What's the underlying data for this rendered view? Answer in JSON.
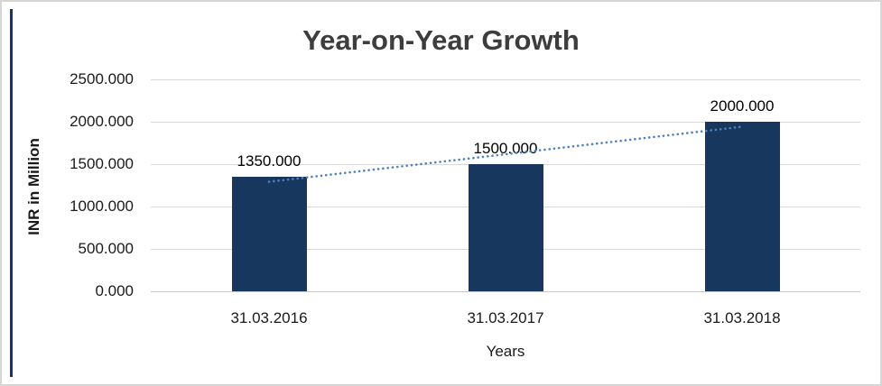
{
  "chart_data": {
    "type": "bar",
    "title": "Year-on-Year Growth",
    "xlabel": "Years",
    "ylabel": "INR in Million",
    "categories": [
      "31.03.2016",
      "31.03.2017",
      "31.03.2018"
    ],
    "values": [
      1350,
      1500,
      2000
    ],
    "bar_value_labels": [
      "1350.000",
      "1500.000",
      "2000.000"
    ],
    "yticks": [
      {
        "value": 0,
        "label": "0.000"
      },
      {
        "value": 500,
        "label": "500.000"
      },
      {
        "value": 1000,
        "label": "1000.000"
      },
      {
        "value": 1500,
        "label": "1500.000"
      },
      {
        "value": 2000,
        "label": "2000.000"
      },
      {
        "value": 2500,
        "label": "2500.000"
      }
    ],
    "ylim": [
      0,
      2500
    ],
    "grid": true,
    "legend": false,
    "trendline": {
      "type": "linear",
      "style": "dotted"
    },
    "colors": {
      "bar": "#17375E",
      "trendline": "#4F81BD",
      "gridline": "#D9D9D9",
      "axis_line": "#C9C9C9",
      "title_text": "#3D3D3D",
      "label_text": "#1A1A1A",
      "accent_line": "#17375E",
      "frame_border": "#D6D6D6"
    }
  }
}
